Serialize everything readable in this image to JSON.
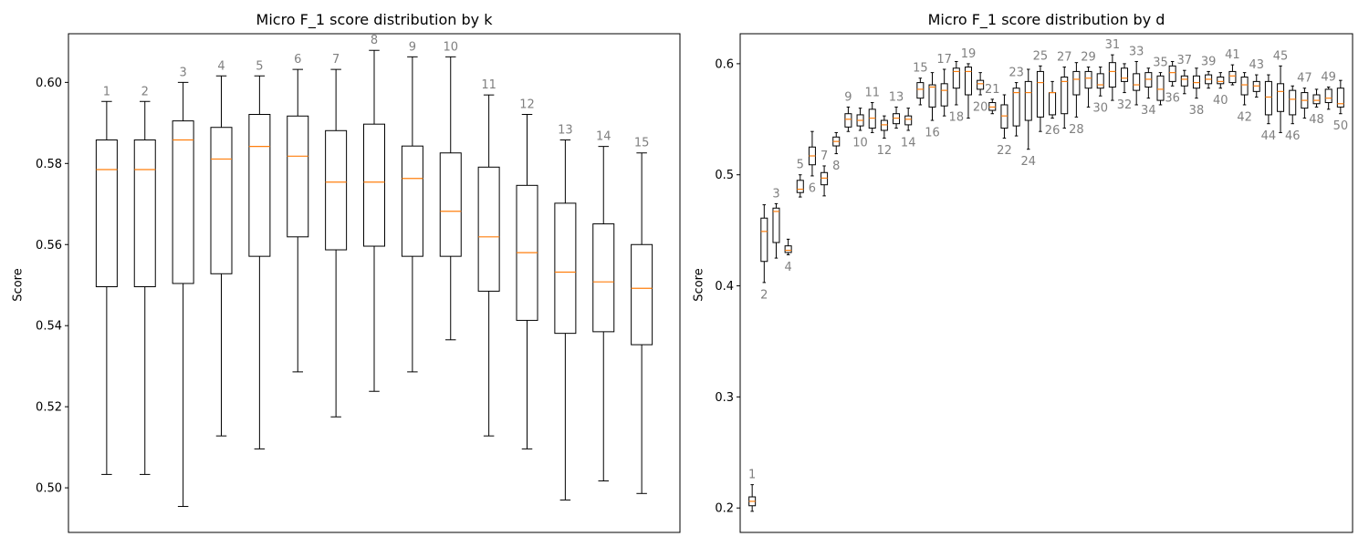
{
  "chart_data": [
    {
      "type": "box",
      "title": "Micro F_1 score distribution by k",
      "xlabel": "",
      "ylabel": "Score",
      "ylim": [
        0.489,
        0.612
      ],
      "yticks": [
        "0.50",
        "0.52",
        "0.54",
        "0.56",
        "0.58",
        "0.60"
      ],
      "xticks_visible": false,
      "grid": false,
      "colors": {
        "box": "#000000",
        "median": "#ff7f0e",
        "annotation": "#808080"
      },
      "boxes": [
        {
          "label": "1",
          "whislo": 0.5033,
          "q1": 0.5496,
          "med": 0.5785,
          "q3": 0.5858,
          "whishi": 0.5953,
          "label_pos": "above"
        },
        {
          "label": "2",
          "whislo": 0.5033,
          "q1": 0.5496,
          "med": 0.5785,
          "q3": 0.5858,
          "whishi": 0.5953,
          "label_pos": "above"
        },
        {
          "label": "3",
          "whislo": 0.4954,
          "q1": 0.5504,
          "med": 0.5858,
          "q3": 0.5905,
          "whishi": 0.6,
          "label_pos": "above"
        },
        {
          "label": "4",
          "whislo": 0.5128,
          "q1": 0.5528,
          "med": 0.5811,
          "q3": 0.5889,
          "whishi": 0.6016,
          "label_pos": "above"
        },
        {
          "label": "5",
          "whislo": 0.5096,
          "q1": 0.5571,
          "med": 0.5842,
          "q3": 0.5921,
          "whishi": 0.6016,
          "label_pos": "above"
        },
        {
          "label": "6",
          "whislo": 0.5286,
          "q1": 0.5619,
          "med": 0.5818,
          "q3": 0.5917,
          "whishi": 0.6032,
          "label_pos": "above"
        },
        {
          "label": "7",
          "whislo": 0.5175,
          "q1": 0.5587,
          "med": 0.5754,
          "q3": 0.5881,
          "whishi": 0.6032,
          "label_pos": "above"
        },
        {
          "label": "8",
          "whislo": 0.5238,
          "q1": 0.5596,
          "med": 0.5754,
          "q3": 0.5897,
          "whishi": 0.6079,
          "label_pos": "above"
        },
        {
          "label": "9",
          "whislo": 0.5286,
          "q1": 0.5571,
          "med": 0.5763,
          "q3": 0.5843,
          "whishi": 0.6063,
          "label_pos": "above"
        },
        {
          "label": "10",
          "whislo": 0.5365,
          "q1": 0.5571,
          "med": 0.5682,
          "q3": 0.5826,
          "whishi": 0.6063,
          "label_pos": "above"
        },
        {
          "label": "11",
          "whislo": 0.5128,
          "q1": 0.5485,
          "med": 0.5619,
          "q3": 0.5791,
          "whishi": 0.5969,
          "label_pos": "above"
        },
        {
          "label": "12",
          "whislo": 0.5096,
          "q1": 0.5413,
          "med": 0.558,
          "q3": 0.5746,
          "whishi": 0.5921,
          "label_pos": "above"
        },
        {
          "label": "13",
          "whislo": 0.497,
          "q1": 0.5381,
          "med": 0.5532,
          "q3": 0.5702,
          "whishi": 0.5858,
          "label_pos": "above"
        },
        {
          "label": "14",
          "whislo": 0.5017,
          "q1": 0.5385,
          "med": 0.5508,
          "q3": 0.5651,
          "whishi": 0.5842,
          "label_pos": "above"
        },
        {
          "label": "15",
          "whislo": 0.4986,
          "q1": 0.5353,
          "med": 0.5492,
          "q3": 0.56,
          "whishi": 0.5826,
          "label_pos": "above"
        }
      ]
    },
    {
      "type": "box",
      "title": "Micro F_1 score distribution by d",
      "xlabel": "",
      "ylabel": "Score",
      "ylim": [
        0.178,
        0.627
      ],
      "yticks": [
        "0.2",
        "0.3",
        "0.4",
        "0.5",
        "0.6"
      ],
      "xticks_visible": false,
      "grid": false,
      "colors": {
        "box": "#000000",
        "median": "#ff7f0e",
        "annotation": "#808080"
      },
      "boxes": [
        {
          "label": "1",
          "whislo": 0.197,
          "q1": 0.202,
          "med": 0.206,
          "q3": 0.21,
          "whishi": 0.221,
          "label_pos": "above"
        },
        {
          "label": "2",
          "whislo": 0.403,
          "q1": 0.422,
          "med": 0.449,
          "q3": 0.461,
          "whishi": 0.473,
          "label_pos": "below"
        },
        {
          "label": "3",
          "whislo": 0.425,
          "q1": 0.439,
          "med": 0.467,
          "q3": 0.47,
          "whishi": 0.474,
          "label_pos": "above"
        },
        {
          "label": "4",
          "whislo": 0.428,
          "q1": 0.43,
          "med": 0.432,
          "q3": 0.436,
          "whishi": 0.442,
          "label_pos": "below"
        },
        {
          "label": "5",
          "whislo": 0.48,
          "q1": 0.484,
          "med": 0.487,
          "q3": 0.495,
          "whishi": 0.5,
          "label_pos": "above"
        },
        {
          "label": "6",
          "whislo": 0.499,
          "q1": 0.509,
          "med": 0.517,
          "q3": 0.525,
          "whishi": 0.539,
          "label_pos": "below"
        },
        {
          "label": "7",
          "whislo": 0.481,
          "q1": 0.491,
          "med": 0.497,
          "q3": 0.502,
          "whishi": 0.508,
          "label_pos": "above"
        },
        {
          "label": "8",
          "whislo": 0.519,
          "q1": 0.526,
          "med": 0.53,
          "q3": 0.534,
          "whishi": 0.538,
          "label_pos": "below"
        },
        {
          "label": "9",
          "whislo": 0.539,
          "q1": 0.543,
          "med": 0.55,
          "q3": 0.555,
          "whishi": 0.561,
          "label_pos": "above"
        },
        {
          "label": "10",
          "whislo": 0.54,
          "q1": 0.544,
          "med": 0.549,
          "q3": 0.554,
          "whishi": 0.56,
          "label_pos": "below"
        },
        {
          "label": "11",
          "whislo": 0.538,
          "q1": 0.542,
          "med": 0.551,
          "q3": 0.559,
          "whishi": 0.565,
          "label_pos": "above"
        },
        {
          "label": "12",
          "whislo": 0.533,
          "q1": 0.54,
          "med": 0.545,
          "q3": 0.549,
          "whishi": 0.553,
          "label_pos": "below"
        },
        {
          "label": "13",
          "whislo": 0.542,
          "q1": 0.546,
          "med": 0.551,
          "q3": 0.555,
          "whishi": 0.561,
          "label_pos": "above"
        },
        {
          "label": "14",
          "whislo": 0.54,
          "q1": 0.545,
          "med": 0.55,
          "q3": 0.553,
          "whishi": 0.56,
          "label_pos": "below"
        },
        {
          "label": "15",
          "whislo": 0.563,
          "q1": 0.569,
          "med": 0.577,
          "q3": 0.583,
          "whishi": 0.587,
          "label_pos": "above"
        },
        {
          "label": "16",
          "whislo": 0.549,
          "q1": 0.561,
          "med": 0.579,
          "q3": 0.581,
          "whishi": 0.592,
          "label_pos": "below"
        },
        {
          "label": "17",
          "whislo": 0.553,
          "q1": 0.562,
          "med": 0.576,
          "q3": 0.582,
          "whishi": 0.595,
          "label_pos": "above"
        },
        {
          "label": "18",
          "whislo": 0.563,
          "q1": 0.578,
          "med": 0.593,
          "q3": 0.596,
          "whishi": 0.602,
          "label_pos": "below"
        },
        {
          "label": "19",
          "whislo": 0.551,
          "q1": 0.572,
          "med": 0.593,
          "q3": 0.597,
          "whishi": 0.6,
          "label_pos": "above"
        },
        {
          "label": "20",
          "whislo": 0.572,
          "q1": 0.577,
          "med": 0.582,
          "q3": 0.585,
          "whishi": 0.592,
          "label_pos": "below"
        },
        {
          "label": "21",
          "whislo": 0.555,
          "q1": 0.558,
          "med": 0.561,
          "q3": 0.565,
          "whishi": 0.568,
          "label_pos": "above"
        },
        {
          "label": "22",
          "whislo": 0.533,
          "q1": 0.542,
          "med": 0.553,
          "q3": 0.563,
          "whishi": 0.572,
          "label_pos": "below"
        },
        {
          "label": "23",
          "whislo": 0.535,
          "q1": 0.544,
          "med": 0.574,
          "q3": 0.578,
          "whishi": 0.583,
          "label_pos": "above"
        },
        {
          "label": "24",
          "whislo": 0.523,
          "q1": 0.549,
          "med": 0.574,
          "q3": 0.584,
          "whishi": 0.595,
          "label_pos": "below"
        },
        {
          "label": "25",
          "whislo": 0.539,
          "q1": 0.552,
          "med": 0.583,
          "q3": 0.593,
          "whishi": 0.598,
          "label_pos": "above"
        },
        {
          "label": "26",
          "whislo": 0.551,
          "q1": 0.554,
          "med": 0.574,
          "q3": 0.574,
          "whishi": 0.584,
          "label_pos": "below"
        },
        {
          "label": "27",
          "whislo": 0.542,
          "q1": 0.555,
          "med": 0.584,
          "q3": 0.588,
          "whishi": 0.597,
          "label_pos": "above"
        },
        {
          "label": "28",
          "whislo": 0.552,
          "q1": 0.572,
          "med": 0.586,
          "q3": 0.593,
          "whishi": 0.601,
          "label_pos": "below"
        },
        {
          "label": "29",
          "whislo": 0.561,
          "q1": 0.578,
          "med": 0.587,
          "q3": 0.593,
          "whishi": 0.597,
          "label_pos": "above"
        },
        {
          "label": "30",
          "whislo": 0.571,
          "q1": 0.578,
          "med": 0.581,
          "q3": 0.591,
          "whishi": 0.597,
          "label_pos": "below"
        },
        {
          "label": "31",
          "whislo": 0.567,
          "q1": 0.579,
          "med": 0.593,
          "q3": 0.601,
          "whishi": 0.608,
          "label_pos": "above"
        },
        {
          "label": "32",
          "whislo": 0.574,
          "q1": 0.584,
          "med": 0.587,
          "q3": 0.596,
          "whishi": 0.6,
          "label_pos": "below"
        },
        {
          "label": "33",
          "whislo": 0.563,
          "q1": 0.576,
          "med": 0.581,
          "q3": 0.591,
          "whishi": 0.602,
          "label_pos": "above"
        },
        {
          "label": "34",
          "whislo": 0.569,
          "q1": 0.579,
          "med": 0.586,
          "q3": 0.592,
          "whishi": 0.596,
          "label_pos": "below"
        },
        {
          "label": "35",
          "whislo": 0.563,
          "q1": 0.567,
          "med": 0.577,
          "q3": 0.589,
          "whishi": 0.592,
          "label_pos": "above"
        },
        {
          "label": "36",
          "whislo": 0.58,
          "q1": 0.584,
          "med": 0.592,
          "q3": 0.598,
          "whishi": 0.602,
          "label_pos": "below"
        },
        {
          "label": "37",
          "whislo": 0.573,
          "q1": 0.58,
          "med": 0.586,
          "q3": 0.589,
          "whishi": 0.594,
          "label_pos": "above"
        },
        {
          "label": "38",
          "whislo": 0.569,
          "q1": 0.578,
          "med": 0.583,
          "q3": 0.589,
          "whishi": 0.596,
          "label_pos": "below"
        },
        {
          "label": "39",
          "whislo": 0.578,
          "q1": 0.582,
          "med": 0.586,
          "q3": 0.59,
          "whishi": 0.593,
          "label_pos": "above"
        },
        {
          "label": "40",
          "whislo": 0.578,
          "q1": 0.582,
          "med": 0.584,
          "q3": 0.588,
          "whishi": 0.592,
          "label_pos": "below"
        },
        {
          "label": "41",
          "whislo": 0.581,
          "q1": 0.583,
          "med": 0.589,
          "q3": 0.593,
          "whishi": 0.599,
          "label_pos": "above"
        },
        {
          "label": "42",
          "whislo": 0.563,
          "q1": 0.572,
          "med": 0.581,
          "q3": 0.588,
          "whishi": 0.592,
          "label_pos": "below"
        },
        {
          "label": "43",
          "whislo": 0.57,
          "q1": 0.575,
          "med": 0.58,
          "q3": 0.584,
          "whishi": 0.59,
          "label_pos": "above"
        },
        {
          "label": "44",
          "whislo": 0.546,
          "q1": 0.554,
          "med": 0.57,
          "q3": 0.584,
          "whishi": 0.59,
          "label_pos": "below"
        },
        {
          "label": "45",
          "whislo": 0.538,
          "q1": 0.557,
          "med": 0.575,
          "q3": 0.582,
          "whishi": 0.598,
          "label_pos": "above"
        },
        {
          "label": "46",
          "whislo": 0.546,
          "q1": 0.554,
          "med": 0.568,
          "q3": 0.576,
          "whishi": 0.58,
          "label_pos": "below"
        },
        {
          "label": "47",
          "whislo": 0.551,
          "q1": 0.56,
          "med": 0.567,
          "q3": 0.574,
          "whishi": 0.578,
          "label_pos": "above"
        },
        {
          "label": "48",
          "whislo": 0.561,
          "q1": 0.564,
          "med": 0.567,
          "q3": 0.572,
          "whishi": 0.577,
          "label_pos": "below"
        },
        {
          "label": "49",
          "whislo": 0.559,
          "q1": 0.565,
          "med": 0.569,
          "q3": 0.577,
          "whishi": 0.579,
          "label_pos": "above"
        },
        {
          "label": "50",
          "whislo": 0.555,
          "q1": 0.561,
          "med": 0.564,
          "q3": 0.578,
          "whishi": 0.585,
          "label_pos": "below"
        }
      ]
    }
  ]
}
